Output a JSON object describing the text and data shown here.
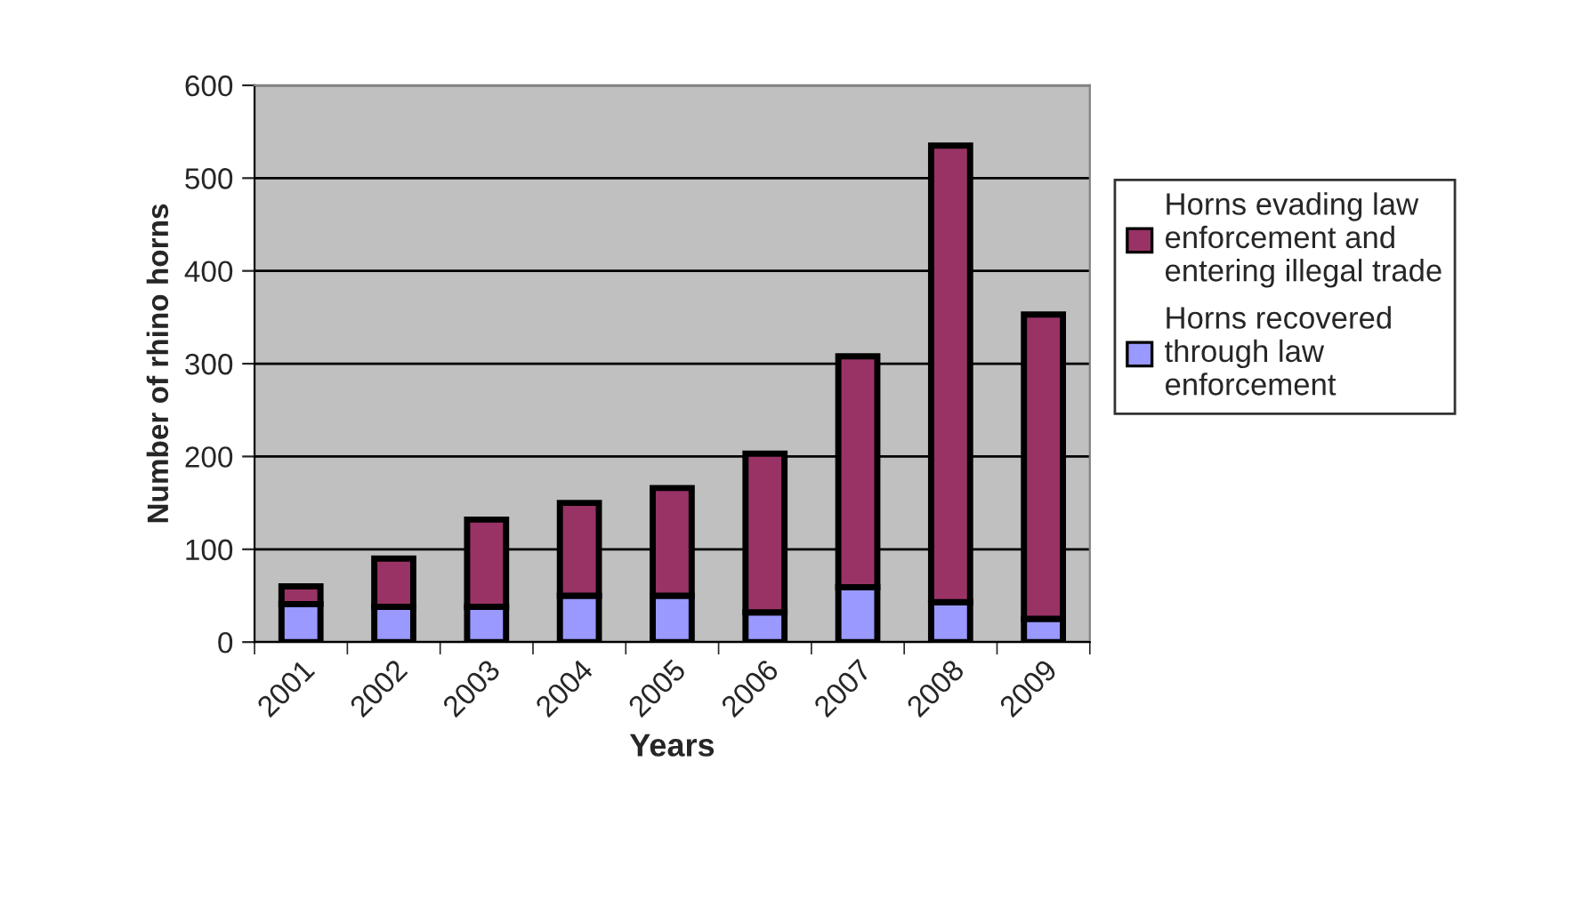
{
  "chart_data": {
    "type": "bar",
    "stacked": true,
    "xlabel": "Years",
    "ylabel": "Number of rhino horns",
    "categories": [
      "2001",
      "2002",
      "2003",
      "2004",
      "2005",
      "2006",
      "2007",
      "2008",
      "2009"
    ],
    "series": [
      {
        "name": "Horns recovered through law enforcement",
        "color": "#9999ff",
        "values": [
          41,
          38,
          38,
          50,
          50,
          32,
          59,
          43,
          25
        ]
      },
      {
        "name": "Horns evading law enforcement and entering illegal trade",
        "color": "#993366",
        "values": [
          19,
          52,
          94,
          100,
          116,
          171,
          249,
          492,
          328
        ]
      }
    ],
    "ylim": [
      0,
      600
    ],
    "yticks": [
      0,
      100,
      200,
      300,
      400,
      500,
      600
    ],
    "grid": "y",
    "legend": "right"
  }
}
